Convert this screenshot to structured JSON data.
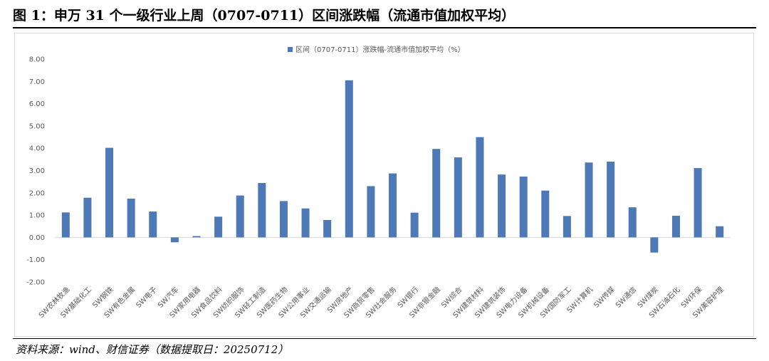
{
  "title": "图 1：申万 31 个一级行业上周（0707-0711）区间涨跌幅（流通市值加权平均）",
  "source": "资料来源：wind、财信证券（数据提取日：20250712）",
  "colors": {
    "bar": "#4e79b7",
    "grid": "#d9d9d9",
    "tick_text": "#595959"
  },
  "chart_data": {
    "type": "bar",
    "legend": "区间（0707-0711）涨跌幅-流通市值加权平均（%）",
    "legend_position": "top-center",
    "ylim": [
      -2,
      8
    ],
    "yticks": [
      "8.00",
      "7.00",
      "6.00",
      "5.00",
      "4.00",
      "3.00",
      "2.00",
      "1.00",
      "0.00",
      "-1.00",
      "-2.00"
    ],
    "grid": false,
    "categories": [
      "SW农林牧渔",
      "SW基础化工",
      "SW钢铁",
      "SW有色金属",
      "SW电子",
      "SW汽车",
      "SW家用电器",
      "SW食品饮料",
      "SW纺织服饰",
      "SW轻工制造",
      "SW医药生物",
      "SW公用事业",
      "SW交通运输",
      "SW房地产",
      "SW商贸零售",
      "SW社会服务",
      "SW银行",
      "SW非银金融",
      "SW综合",
      "SW建筑材料",
      "SW建筑装饰",
      "SW电力设备",
      "SW机械设备",
      "SW国防军工",
      "SW计算机",
      "SW传媒",
      "SW通信",
      "SW煤炭",
      "SW石油石化",
      "SW环保",
      "SW美容护理"
    ],
    "values": [
      1.12,
      1.78,
      4.02,
      1.74,
      1.16,
      -0.22,
      0.06,
      0.93,
      1.88,
      2.44,
      1.63,
      1.3,
      0.78,
      7.05,
      2.3,
      2.87,
      1.11,
      3.97,
      3.59,
      4.5,
      2.82,
      2.73,
      2.1,
      0.96,
      3.36,
      3.4,
      1.35,
      -0.68,
      0.97,
      3.11,
      0.5
    ]
  }
}
